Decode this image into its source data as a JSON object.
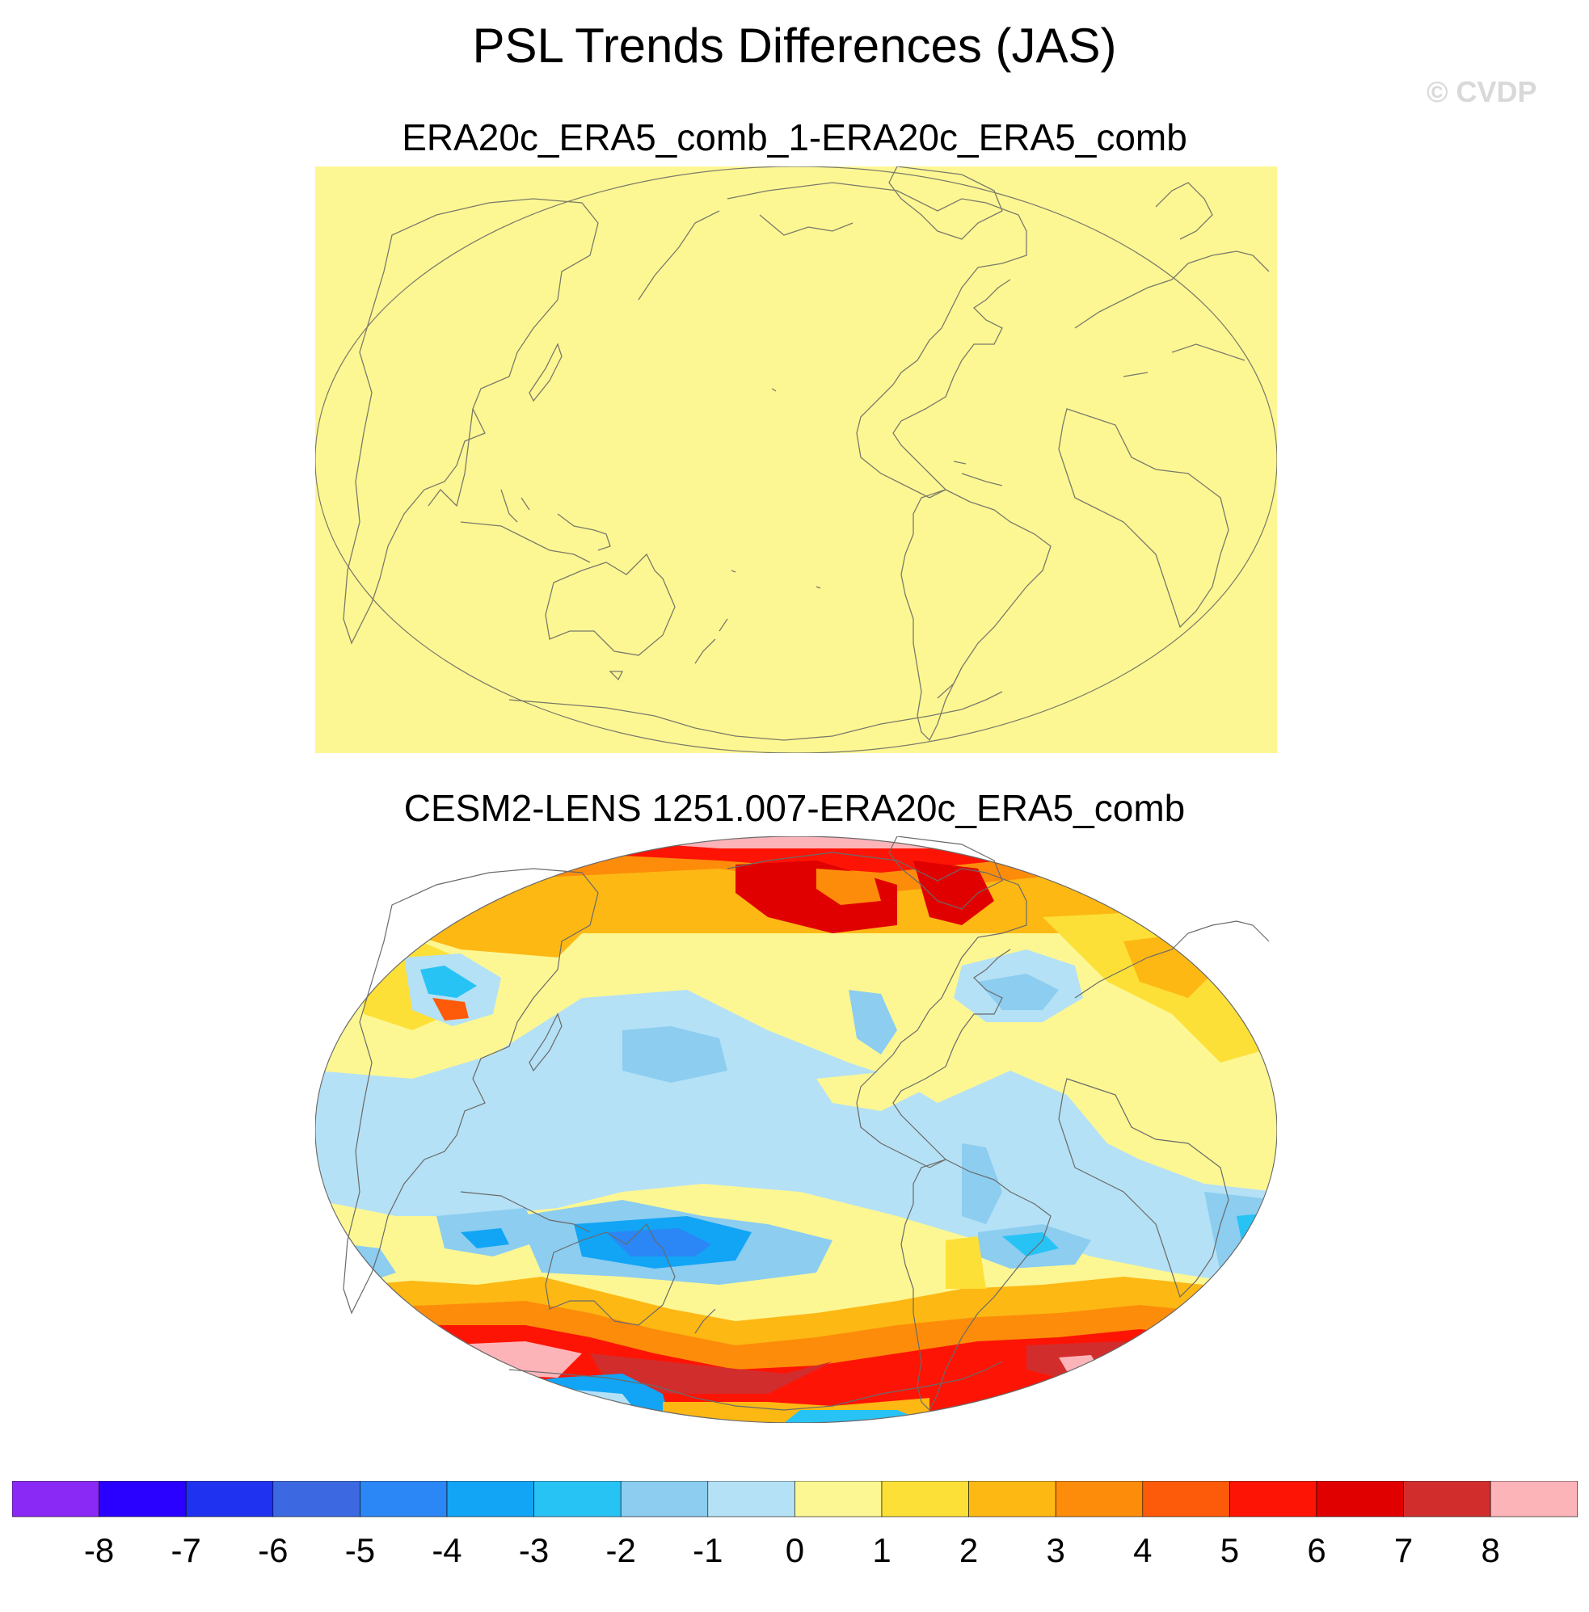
{
  "title": "PSL Trends Differences (JAS)",
  "watermark": "© CVDP",
  "panels": [
    {
      "title": "ERA20c_ERA5_comb_1-ERA20c_ERA5_comb",
      "fill_color": "#fdf793"
    },
    {
      "title": "CESM2-LENS 1251.007-ERA20c_ERA5_comb"
    }
  ],
  "colorbar": {
    "labels": [
      "-8",
      "-7",
      "-6",
      "-5",
      "-4",
      "-3",
      "-2",
      "-1",
      "0",
      "1",
      "2",
      "3",
      "4",
      "5",
      "6",
      "7",
      "8"
    ],
    "colors": [
      "#8a28f5",
      "#2a00ff",
      "#1e32f0",
      "#3c69e1",
      "#2a87f5",
      "#12a5f5",
      "#28c3f5",
      "#8ccdf0",
      "#b4e1f5",
      "#fdf793",
      "#fde037",
      "#fdb814",
      "#fd8c0a",
      "#fd5a0a",
      "#fd1405",
      "#e10000",
      "#d22d2d",
      "#fdb4b9"
    ]
  }
}
